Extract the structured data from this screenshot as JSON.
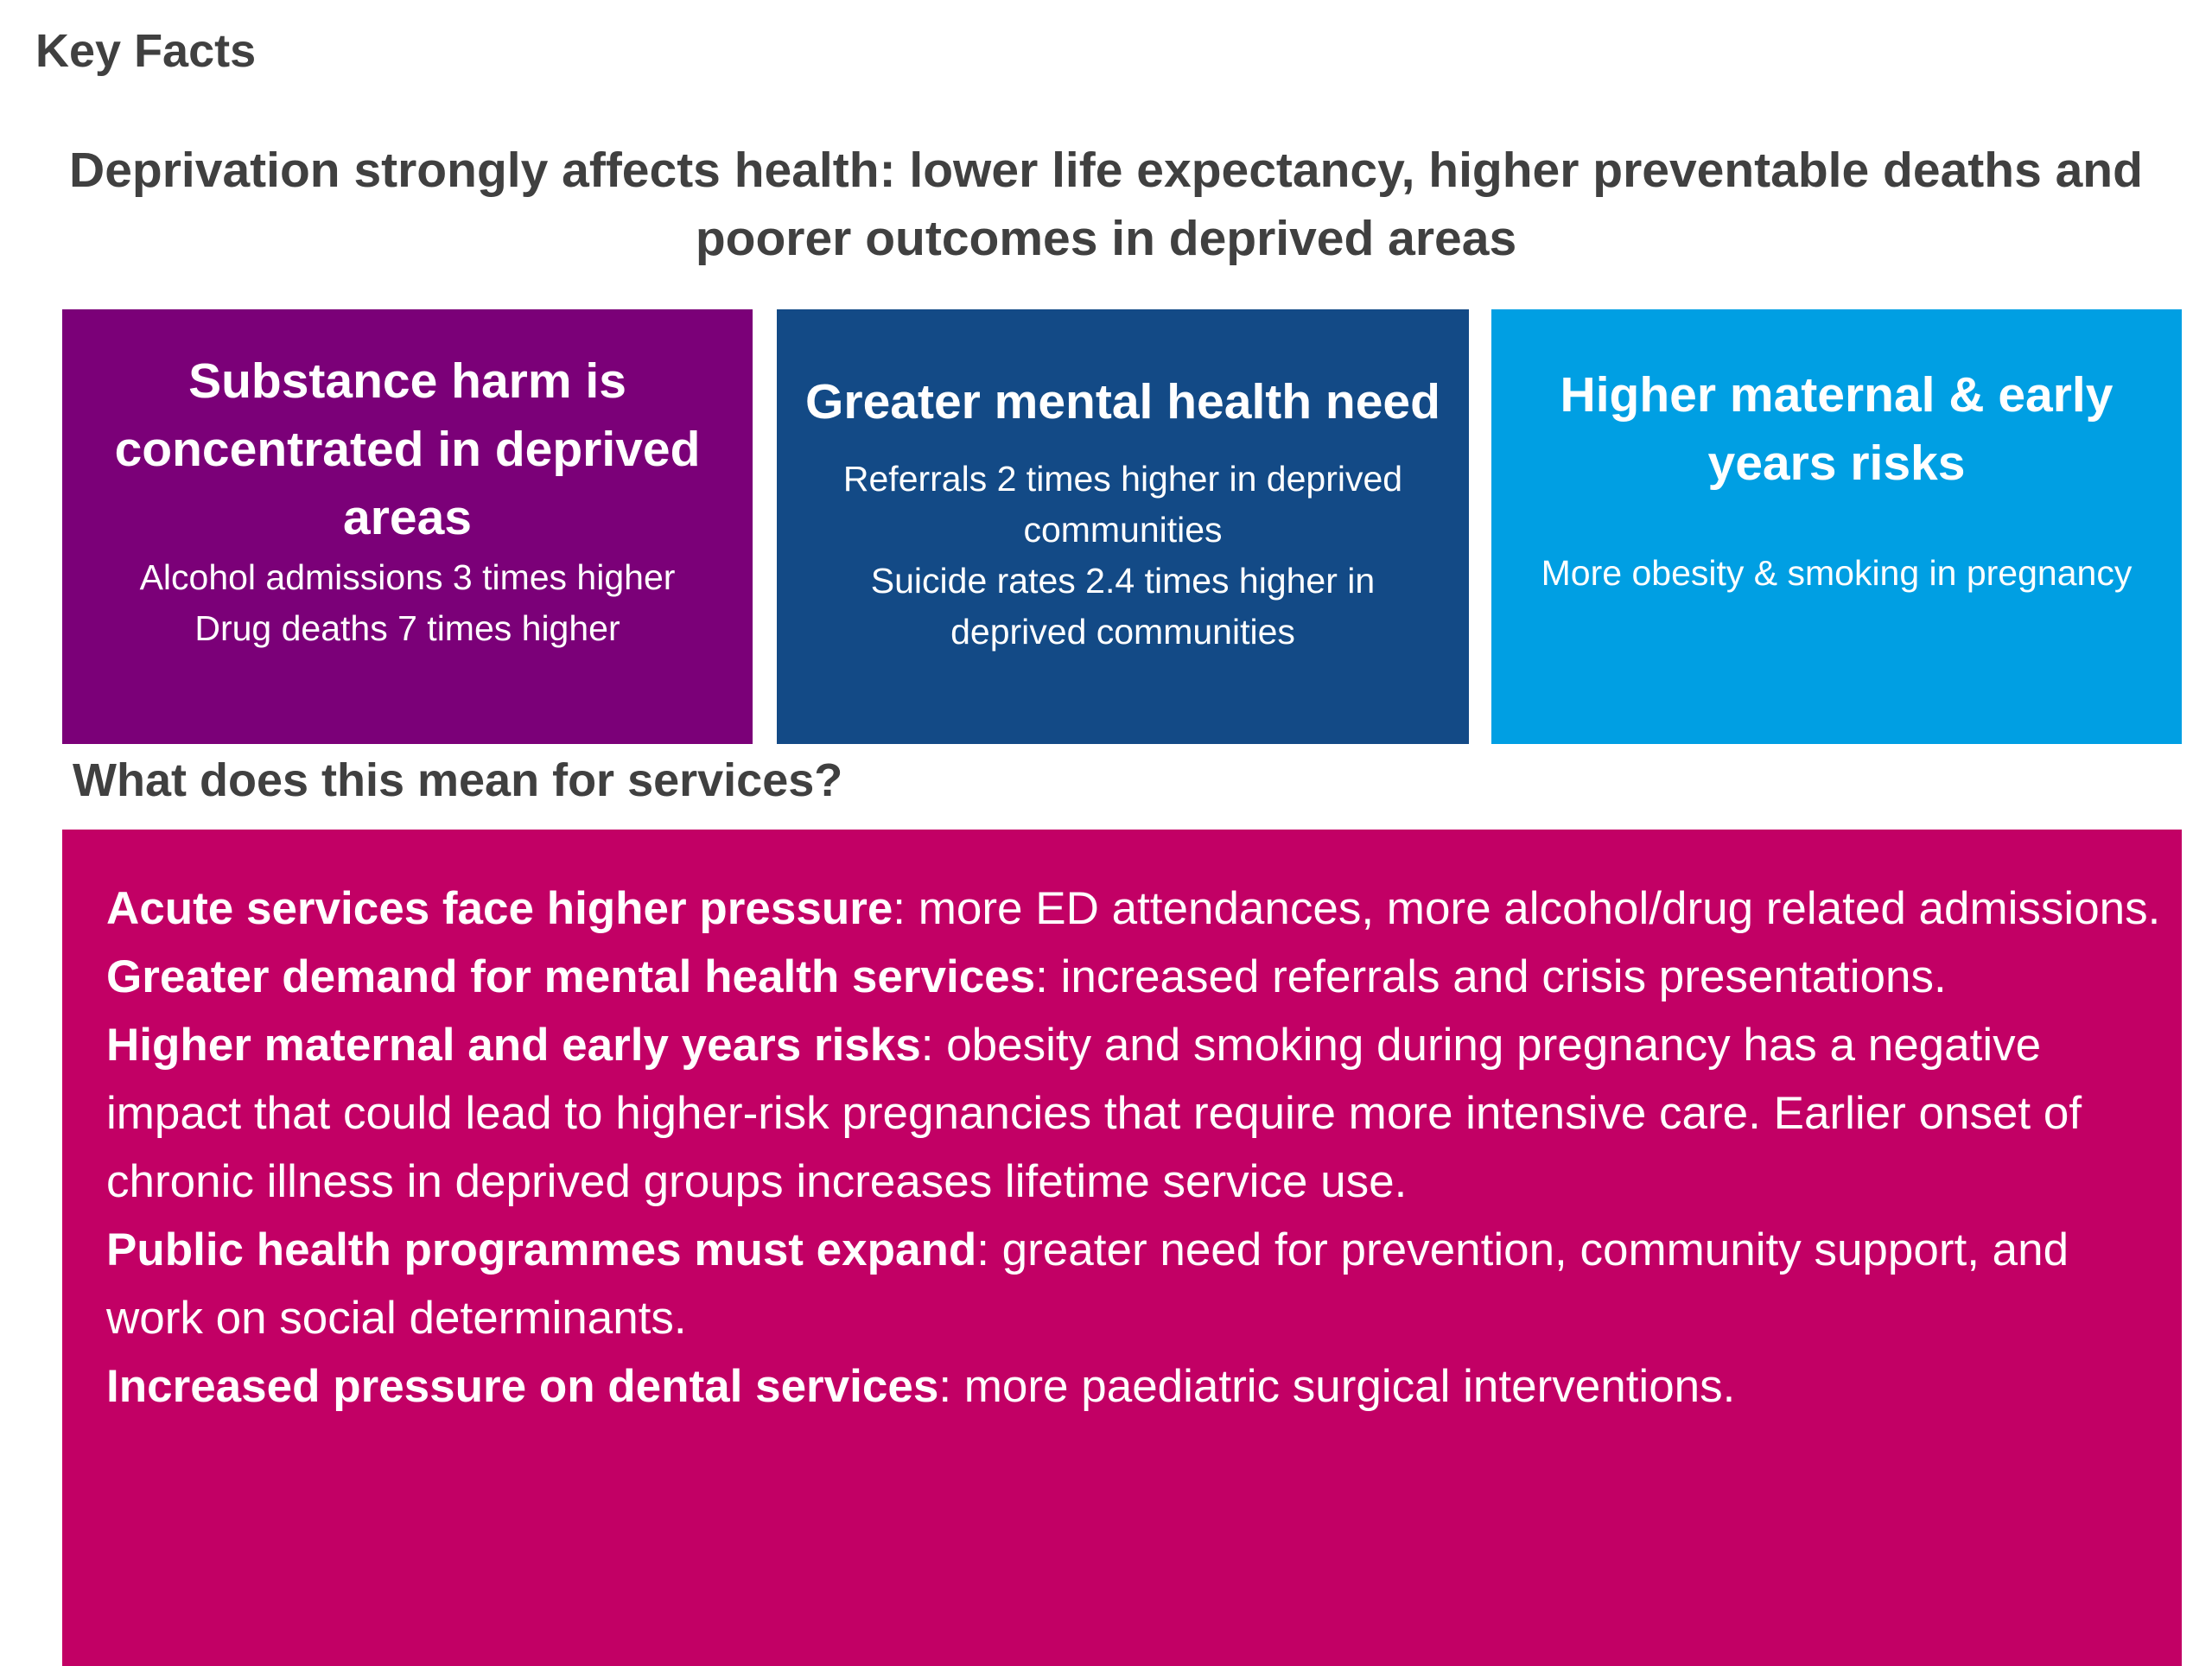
{
  "title": "Key Facts",
  "subtitle": "Deprivation strongly affects health: lower life expectancy, higher preventable deaths and poorer outcomes in deprived areas",
  "colors": {
    "purple": "#7b0078",
    "navy": "#134a86",
    "blue": "#009fe3",
    "pink": "#c20065",
    "text": "#404040"
  },
  "cards": [
    {
      "heading": "Substance harm is concentrated in deprived areas",
      "lines": [
        "Alcohol admissions 3 times higher",
        "Drug deaths 7 times higher"
      ]
    },
    {
      "heading": "Greater mental health need",
      "lines": [
        "Referrals 2 times higher in deprived communities",
        "Suicide rates 2.4 times higher in deprived communities"
      ]
    },
    {
      "heading": "Higher maternal & early years risks",
      "lines": [
        "More obesity & smoking in pregnancy"
      ]
    }
  ],
  "services": {
    "heading": "What does this mean for services?",
    "items": [
      {
        "bold": "Acute services face higher pressure",
        "text": ": more ED attendances, more alcohol/drug related admissions."
      },
      {
        "bold": "Greater demand for mental health services",
        "text": ": increased referrals and crisis presentations."
      },
      {
        "bold": "Higher maternal and early years risks",
        "text": ": obesity and smoking during pregnancy has a negative impact that could lead to higher-risk pregnancies that require more intensive care. Earlier onset of chronic illness in deprived groups increases lifetime service use."
      },
      {
        "bold": "Public health programmes must expand",
        "text": ": greater need for prevention, community support, and work on social determinants."
      },
      {
        "bold": "Increased pressure on dental services",
        "text": ": more paediatric surgical interventions."
      }
    ]
  }
}
